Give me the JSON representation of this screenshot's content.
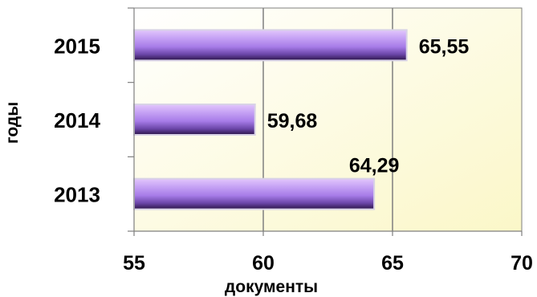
{
  "chart_data": {
    "type": "bar",
    "orientation": "horizontal",
    "title": "",
    "xlabel": "документы",
    "ylabel": "годы",
    "categories": [
      "2013",
      "2014",
      "2015"
    ],
    "values": [
      64.29,
      59.68,
      65.55
    ],
    "value_labels": [
      "64,29",
      "59,68",
      "65,55"
    ],
    "xlim": [
      55,
      70
    ],
    "xticks": [
      55,
      60,
      65,
      70
    ],
    "grid": "vertical",
    "legend": "none"
  },
  "colors": {
    "bar_light": "#e2c6fc",
    "bar_mid": "#a77ce8",
    "bar_dark": "#2b1448",
    "plot_bg_start": "#ffffff",
    "plot_bg_end": "#fbf7c8",
    "grid": "#7f7f7f"
  }
}
